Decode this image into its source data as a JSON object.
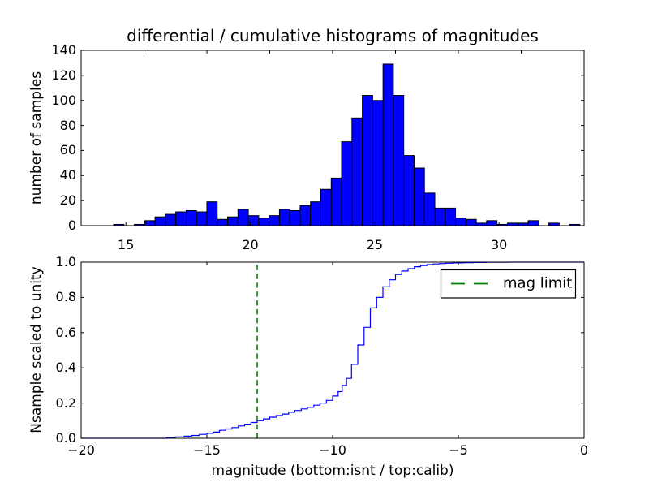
{
  "title": "differential / cumulative histograms of magnitudes",
  "colors": {
    "background": "#ffffff",
    "frame": "#000000",
    "text": "#000000",
    "bar_fill": "#0000ff",
    "bar_edge": "#000000",
    "curve": "#0000ff",
    "mag_limit": "#008000"
  },
  "chart_data": [
    {
      "type": "bar",
      "subtype": "histogram",
      "ylabel": "number of samples",
      "xlim": [
        13.2,
        33.42
      ],
      "ylim": [
        0,
        140
      ],
      "xticks": [
        15,
        20,
        25,
        30
      ],
      "xtick_labels": [
        "15",
        "20",
        "25",
        "30"
      ],
      "yticks": [
        0,
        20,
        40,
        60,
        80,
        100,
        120,
        140
      ],
      "ytick_labels": [
        "0",
        "20",
        "40",
        "60",
        "80",
        "100",
        "120",
        "140"
      ],
      "top_edge_ticks_isnt_scale": [
        -17.5,
        -15,
        -12.5,
        -10,
        -7.5,
        -5,
        -2.5
      ],
      "bin_start": 14.505,
      "bin_width": 0.4166,
      "values": [
        1,
        0,
        1,
        4,
        7,
        9,
        11,
        12,
        11,
        19,
        5,
        7,
        13,
        8,
        6,
        8,
        13,
        12,
        16,
        19,
        29,
        38,
        67,
        86,
        104,
        100,
        129,
        104,
        56,
        46,
        26,
        14,
        14,
        6,
        5,
        2,
        4,
        1,
        2,
        2,
        4,
        0,
        2,
        0,
        1
      ],
      "grid": false
    },
    {
      "type": "line",
      "subtype": "cumulative-step",
      "xlabel": "magnitude (bottom:isnt / top:calib)",
      "ylabel": "Nsample scaled to unity",
      "xlim": [
        -20,
        0
      ],
      "ylim": [
        0.0,
        1.0
      ],
      "xticks": [
        -20,
        -15,
        -10,
        -5,
        0
      ],
      "xtick_labels": [
        "−20",
        "−15",
        "−10",
        "−5",
        "0"
      ],
      "yticks": [
        0.0,
        0.2,
        0.4,
        0.6,
        0.8,
        1.0
      ],
      "ytick_labels": [
        "0.0",
        "0.2",
        "0.4",
        "0.6",
        "0.8",
        "1.0"
      ],
      "curve_start": [
        -20,
        0.0
      ],
      "steps": [
        [
          -16.6,
          0.004
        ],
        [
          -16.25,
          0.008
        ],
        [
          -15.9,
          0.012
        ],
        [
          -15.6,
          0.016
        ],
        [
          -15.3,
          0.022
        ],
        [
          -15.0,
          0.028
        ],
        [
          -14.75,
          0.035
        ],
        [
          -14.5,
          0.045
        ],
        [
          -14.25,
          0.053
        ],
        [
          -14.0,
          0.061
        ],
        [
          -13.75,
          0.07
        ],
        [
          -13.5,
          0.08
        ],
        [
          -13.25,
          0.09
        ],
        [
          -13.0,
          0.1
        ],
        [
          -12.75,
          0.11
        ],
        [
          -12.5,
          0.12
        ],
        [
          -12.25,
          0.129
        ],
        [
          -12.0,
          0.138
        ],
        [
          -11.75,
          0.148
        ],
        [
          -11.5,
          0.158
        ],
        [
          -11.25,
          0.167
        ],
        [
          -11.0,
          0.176
        ],
        [
          -10.75,
          0.188
        ],
        [
          -10.5,
          0.2
        ],
        [
          -10.25,
          0.215
        ],
        [
          -10.0,
          0.24
        ],
        [
          -9.78,
          0.265
        ],
        [
          -9.62,
          0.3
        ],
        [
          -9.45,
          0.34
        ],
        [
          -9.25,
          0.42
        ],
        [
          -9.0,
          0.53
        ],
        [
          -8.75,
          0.63
        ],
        [
          -8.5,
          0.74
        ],
        [
          -8.25,
          0.8
        ],
        [
          -8.0,
          0.86
        ],
        [
          -7.75,
          0.9
        ],
        [
          -7.5,
          0.93
        ],
        [
          -7.25,
          0.95
        ],
        [
          -7.0,
          0.963
        ],
        [
          -6.75,
          0.974
        ],
        [
          -6.5,
          0.981
        ],
        [
          -6.25,
          0.986
        ],
        [
          -6.0,
          0.99
        ],
        [
          -5.75,
          0.992
        ],
        [
          -5.5,
          0.994
        ],
        [
          -5.2,
          0.996
        ],
        [
          -4.8,
          0.997
        ],
        [
          -4.4,
          0.998
        ],
        [
          -3.9,
          0.999
        ],
        [
          -3.0,
          1.0
        ]
      ],
      "vline": {
        "x": -13,
        "style": "dashed"
      },
      "legend": {
        "label": "mag limit",
        "position": "upper right"
      },
      "grid": false
    }
  ]
}
